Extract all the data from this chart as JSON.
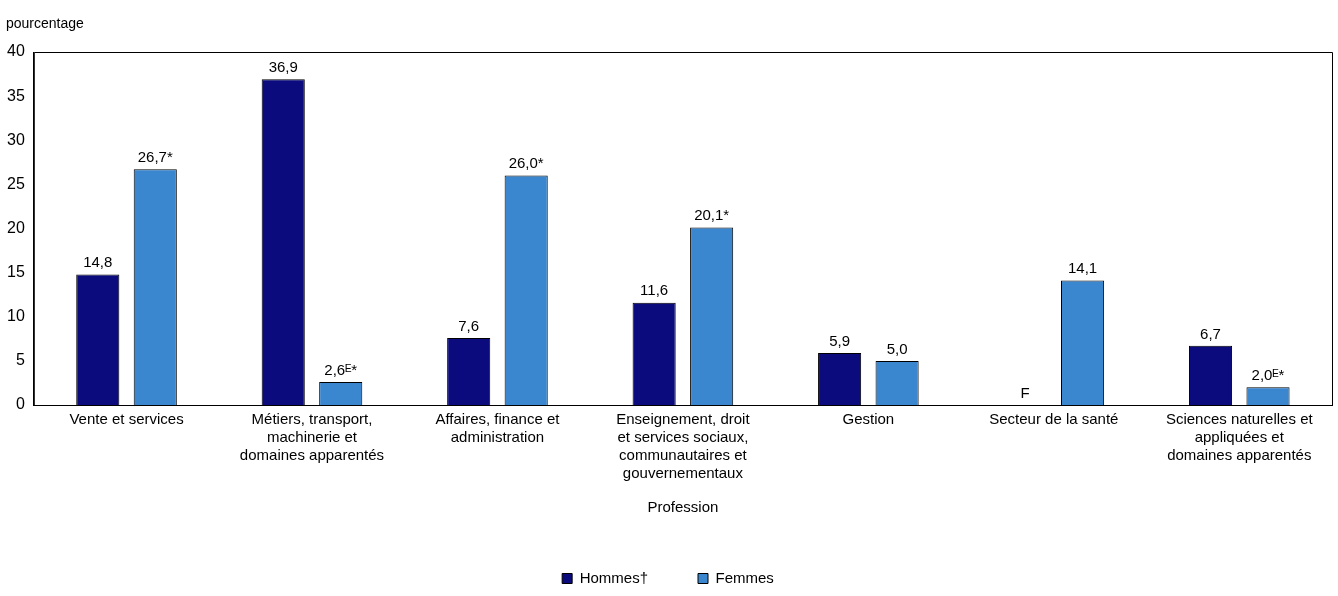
{
  "chart_data": {
    "type": "bar",
    "ylabel": "pourcentage",
    "xlabel": "Profession",
    "categories": [
      "Vente et services",
      "Métiers, transport, machinerie et domaines apparentés",
      "Affaires, finance et administration",
      "Enseignement, droit et services sociaux, communautaires et gouvernementaux",
      "Gestion",
      "Secteur de la santé",
      "Sciences naturelles et appliquées et domaines apparentés"
    ],
    "series": [
      {
        "name": "Hommes†",
        "color": "#0b0b7d",
        "values": [
          14.8,
          36.9,
          7.6,
          11.6,
          5.9,
          null,
          6.7
        ],
        "value_labels": [
          "14,8",
          "36,9",
          "7,6",
          "11,6",
          "5,9",
          "F",
          "6,7"
        ]
      },
      {
        "name": "Femmes",
        "color": "#3a87cf",
        "values": [
          26.7,
          2.6,
          26.0,
          20.1,
          5.0,
          14.1,
          2.0
        ],
        "value_labels": [
          "26,7*",
          "2,6ᴱ*",
          "26,0*",
          "20,1*",
          "5,0",
          "14,1",
          "2,0ᴱ*"
        ]
      }
    ],
    "ylim": [
      0,
      40
    ],
    "yticks": [
      0,
      5,
      10,
      15,
      20,
      25,
      30,
      35,
      40
    ],
    "legend": "bottom"
  }
}
